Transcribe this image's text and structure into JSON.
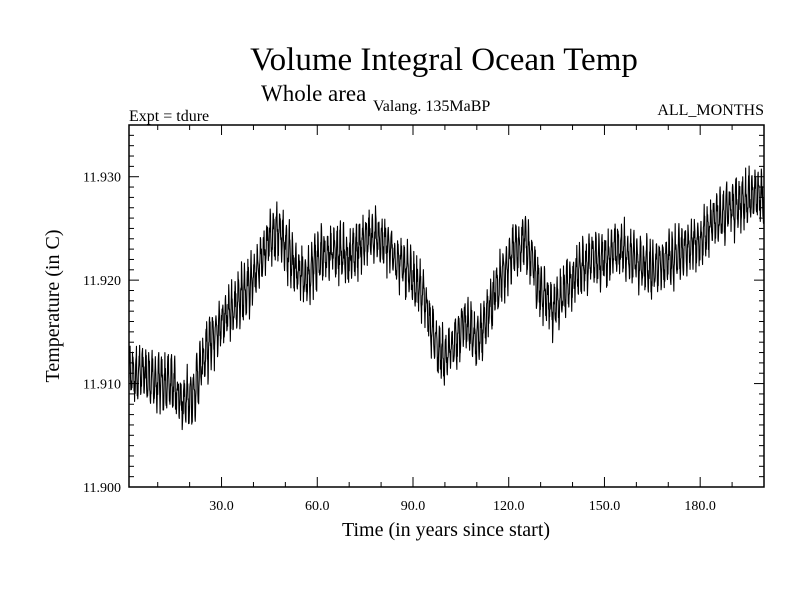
{
  "chart_data": {
    "type": "line",
    "title": "Volume Integral Ocean Temp",
    "subtitle": "Whole area",
    "expt_label": "Expt = tdure",
    "period_label": "Valang.  135MaBP",
    "months_label": "ALL_MONTHS",
    "xlabel": "Time (in years since start)",
    "ylabel": "Temperature (in C)",
    "xlim": [
      1,
      200
    ],
    "ylim": [
      11.9,
      11.935
    ],
    "x_ticks": [
      30.0,
      60.0,
      90.0,
      120.0,
      150.0,
      180.0
    ],
    "x_tick_labels": [
      "30.0",
      "60.0",
      "90.0",
      "120.0",
      "150.0",
      "180.0"
    ],
    "y_ticks": [
      11.9,
      11.91,
      11.92,
      11.93
    ],
    "y_tick_labels": [
      "11.900",
      "11.910",
      "11.920",
      "11.930"
    ],
    "series": [
      {
        "name": "Volume integral ocean temperature",
        "style": "monthly values, large seasonal oscillation",
        "trend_x": [
          1,
          5,
          10,
          15,
          18,
          21,
          25,
          30,
          35,
          40,
          45,
          48,
          52,
          56,
          60,
          65,
          70,
          75,
          80,
          85,
          90,
          94,
          97,
          100,
          103,
          106,
          110,
          115,
          120,
          125,
          130,
          134,
          138,
          142,
          146,
          150,
          155,
          160,
          165,
          170,
          175,
          180,
          185,
          190,
          195,
          200
        ],
        "trend_y": [
          11.911,
          11.911,
          11.91,
          11.91,
          11.908,
          11.909,
          11.913,
          11.916,
          11.918,
          11.92,
          11.924,
          11.925,
          11.922,
          11.92,
          11.922,
          11.923,
          11.922,
          11.924,
          11.924,
          11.922,
          11.92,
          11.918,
          11.914,
          11.912,
          11.914,
          11.916,
          11.914,
          11.918,
          11.922,
          11.924,
          11.919,
          11.917,
          11.919,
          11.921,
          11.922,
          11.922,
          11.923,
          11.922,
          11.921,
          11.922,
          11.923,
          11.924,
          11.926,
          11.927,
          11.928,
          11.928
        ],
        "oscillation_amplitude": 0.0025,
        "samples_per_year": 12
      }
    ]
  }
}
